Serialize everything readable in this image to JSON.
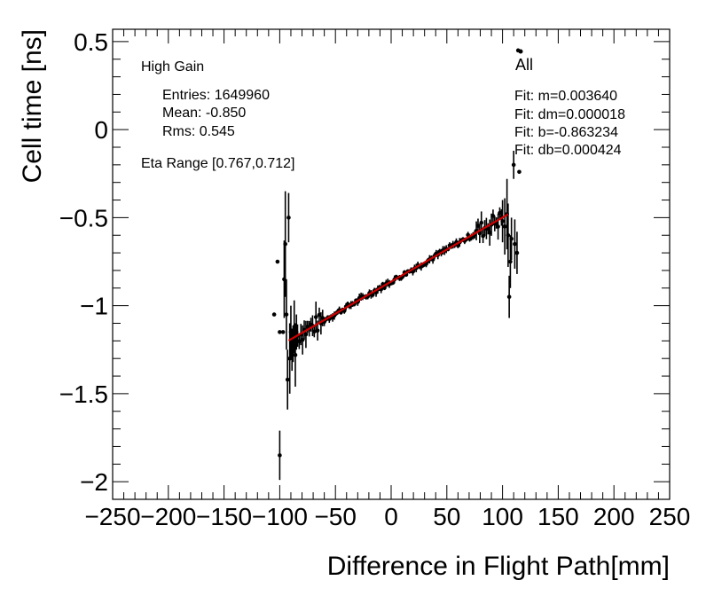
{
  "chart_data": {
    "type": "scatter",
    "xlabel": "Difference in Flight Path[mm]",
    "ylabel": "Cell time [ns]",
    "xlim": [
      -250,
      250
    ],
    "ylim": [
      -2.1,
      0.57
    ],
    "x_ticks": [
      -250,
      -200,
      -150,
      -100,
      -50,
      0,
      50,
      100,
      150,
      200,
      250
    ],
    "x_tick_labels": [
      "−250",
      "−200",
      "−150",
      "−100",
      "−50",
      "0",
      "50",
      "100",
      "150",
      "200",
      "250"
    ],
    "y_ticks": [
      -2,
      -1.5,
      -1,
      -0.5,
      0,
      0.5
    ],
    "y_tick_labels": [
      "−2",
      "−1.5",
      "−1",
      "−0.5",
      "0",
      "0.5"
    ],
    "grid": false,
    "legend_position": "top-right",
    "legend_entry": "All",
    "stats": {
      "gain": "High Gain",
      "entries": "Entries: 1649960",
      "mean": "Mean: -0.850",
      "rms": "Rms: 0.545",
      "eta_range": "Eta Range [0.767,0.712]"
    },
    "fit_lines": [
      "Fit: m=0.003640",
      "Fit: dm=0.000018",
      "Fit: b=-0.863234",
      "Fit: db=0.000424"
    ],
    "fit": {
      "m": 0.00364,
      "b": -0.863234,
      "x_range": [
        -92,
        105
      ],
      "color": "#cc0000"
    },
    "outliers": [
      {
        "x": -105,
        "y": -1.05,
        "err": 0.0
      },
      {
        "x": -102,
        "y": -0.75,
        "err": 0.0
      },
      {
        "x": -100,
        "y": -1.15,
        "err": 0.0
      },
      {
        "x": -100,
        "y": -1.85,
        "err": 0.14
      },
      {
        "x": -97,
        "y": -1.15,
        "err": 0.0
      },
      {
        "x": -96,
        "y": -0.85,
        "err": 0.22
      },
      {
        "x": -95,
        "y": -0.65,
        "err": 0.3
      },
      {
        "x": -94,
        "y": -1.05,
        "err": 0.2
      },
      {
        "x": -93,
        "y": -1.42,
        "err": 0.17
      },
      {
        "x": -92,
        "y": -0.5,
        "err": 0.14
      },
      {
        "x": -91,
        "y": -1.3,
        "err": 0.2
      },
      {
        "x": -90,
        "y": -1.15,
        "err": 0.15
      },
      {
        "x": -89,
        "y": -1.25,
        "err": 0.12
      },
      {
        "x": -88,
        "y": -1.22,
        "err": 0.1
      },
      {
        "x": -87,
        "y": -1.12,
        "err": 0.15
      },
      {
        "x": -86,
        "y": -1.28,
        "err": 0.18
      },
      {
        "x": -85,
        "y": -1.15,
        "err": 0.1
      },
      {
        "x": 100,
        "y": -0.52,
        "err": 0.12
      },
      {
        "x": 102,
        "y": -0.55,
        "err": 0.16
      },
      {
        "x": 104,
        "y": -0.48,
        "err": 0.2
      },
      {
        "x": 105,
        "y": -0.6,
        "err": 0.18
      },
      {
        "x": 106,
        "y": -0.95,
        "err": 0.12
      },
      {
        "x": 107,
        "y": -0.75,
        "err": 0.15
      },
      {
        "x": 108,
        "y": -0.62,
        "err": 0.12
      },
      {
        "x": 110,
        "y": -0.2,
        "err": 0.08
      },
      {
        "x": 111,
        "y": -0.65,
        "err": 0.14
      },
      {
        "x": 113,
        "y": -0.7,
        "err": 0.12
      },
      {
        "x": 115,
        "y": -0.24,
        "err": 0.0
      },
      {
        "x": 114,
        "y": 0.45,
        "err": 0.0
      }
    ]
  }
}
